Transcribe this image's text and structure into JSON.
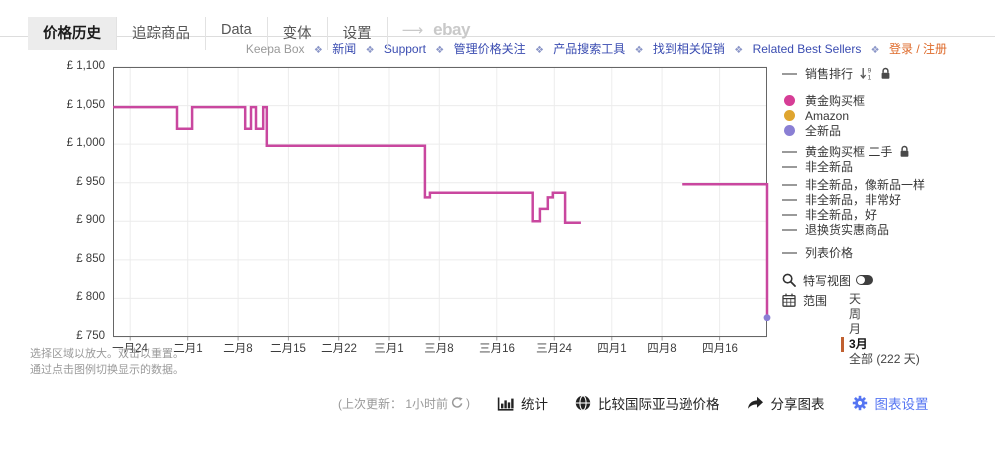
{
  "tabs": {
    "items": [
      {
        "label": "价格历史",
        "active": true
      },
      {
        "label": "追踪商品",
        "active": false
      },
      {
        "label": "Data",
        "active": false
      },
      {
        "label": "变体",
        "active": false
      },
      {
        "label": "设置",
        "active": false
      }
    ],
    "arrow": "⟶",
    "ebay_label": "ebay"
  },
  "header": {
    "brand": "Keepa Box",
    "separator": "❖",
    "links": [
      "新闻",
      "Support",
      "管理价格关注",
      "产品搜索工具",
      "找到相关促销",
      "Related Best Sellers"
    ],
    "auth": "登录 / 注册"
  },
  "chart_data": {
    "type": "line",
    "step": true,
    "title": "",
    "xlabel": "",
    "ylabel": "",
    "currency_symbol": "£",
    "ylim": [
      750,
      1100
    ],
    "yticks": [
      1100,
      1050,
      1000,
      950,
      900,
      850,
      800,
      750
    ],
    "ytick_labels": [
      "£ 1,100",
      "£ 1,050",
      "£ 1,000",
      "£ 950",
      "£ 900",
      "£ 850",
      "£ 800",
      "£ 750"
    ],
    "x_span_days": 91,
    "xticks": [
      {
        "day": 2.4,
        "label": "一月24"
      },
      {
        "day": 10.4,
        "label": "二月1"
      },
      {
        "day": 17.4,
        "label": "二月8"
      },
      {
        "day": 24.4,
        "label": "二月15"
      },
      {
        "day": 31.4,
        "label": "二月22"
      },
      {
        "day": 38.4,
        "label": "三月1"
      },
      {
        "day": 45.4,
        "label": "三月8"
      },
      {
        "day": 53.4,
        "label": "三月16"
      },
      {
        "day": 61.4,
        "label": "三月24"
      },
      {
        "day": 69.4,
        "label": "四月1"
      },
      {
        "day": 76.4,
        "label": "四月8"
      },
      {
        "day": 84.4,
        "label": "四月16"
      }
    ],
    "series": [
      {
        "name": "黄金购买框",
        "color": "#c9479f",
        "segments": [
          [
            [
              0,
              1048
            ],
            [
              8.9,
              1048
            ],
            [
              8.9,
              1020
            ],
            [
              11.0,
              1020
            ],
            [
              11.0,
              1048
            ],
            [
              18.4,
              1048
            ],
            [
              18.4,
              1020
            ],
            [
              19.2,
              1020
            ],
            [
              19.2,
              1048
            ],
            [
              19.9,
              1048
            ],
            [
              19.9,
              1020
            ],
            [
              20.9,
              1020
            ],
            [
              20.9,
              1048
            ],
            [
              21.4,
              1048
            ],
            [
              21.4,
              998
            ],
            [
              43.4,
              998
            ],
            [
              43.4,
              931
            ],
            [
              44.1,
              931
            ],
            [
              44.1,
              937
            ],
            [
              58.4,
              937
            ],
            [
              58.4,
              900
            ],
            [
              59.4,
              900
            ],
            [
              59.4,
              916
            ],
            [
              60.5,
              916
            ],
            [
              60.5,
              931
            ],
            [
              61.2,
              931
            ],
            [
              61.2,
              937
            ],
            [
              62.9,
              937
            ],
            [
              62.9,
              898
            ],
            [
              65.1,
              898
            ]
          ],
          [
            [
              79.2,
              948
            ],
            [
              91,
              948
            ],
            [
              91,
              775
            ]
          ]
        ]
      }
    ],
    "end_marker": {
      "day": 91,
      "value": 775,
      "color": "#8a7fd4"
    },
    "grid": true,
    "legend_position": "right"
  },
  "legend": {
    "sales_rank": {
      "label": "销售排行"
    },
    "dot_items": [
      {
        "label": "黄金购买框",
        "color": "#d63d96"
      },
      {
        "label": "Amazon",
        "color": "#dfa52f"
      },
      {
        "label": "全新品",
        "color": "#8a7fd4"
      }
    ],
    "line_items": [
      {
        "label": "黄金购买框 二手"
      },
      {
        "label": "非全新品"
      },
      {
        "label": "非全新品，像新品一样"
      },
      {
        "label": "非全新品，非常好"
      },
      {
        "label": "非全新品，好"
      },
      {
        "label": "退换货实惠商品"
      }
    ],
    "list_price": {
      "label": "列表价格"
    }
  },
  "controls": {
    "closeup_label": "特写视图",
    "range_label": "范围",
    "range_options": [
      {
        "label": "天",
        "active": false
      },
      {
        "label": "周",
        "active": false
      },
      {
        "label": "月",
        "active": false
      },
      {
        "label": "3月",
        "active": true
      },
      {
        "label": "全部 (222 天)",
        "active": false
      }
    ],
    "active_bar_color": "#c06030"
  },
  "hints": [
    "选择区域以放大。双击以重置。",
    "通过点击图例切换显示的数据。"
  ],
  "toolbar": {
    "update_prefix": "(上次更新： 1小时前",
    "update_suffix": ")",
    "stats": "统计",
    "compare": "比较国际亚马逊价格",
    "share": "分享图表",
    "settings": "图表设置"
  },
  "colors": {
    "buybox": "#c9479f",
    "amazon": "#dfa52f",
    "new_third_party": "#8a7fd4",
    "link_blue": "#3a4cb1",
    "auth_orange": "#de6a2a",
    "settings_blue": "#5575f2",
    "range_active_bar": "#c06030"
  }
}
